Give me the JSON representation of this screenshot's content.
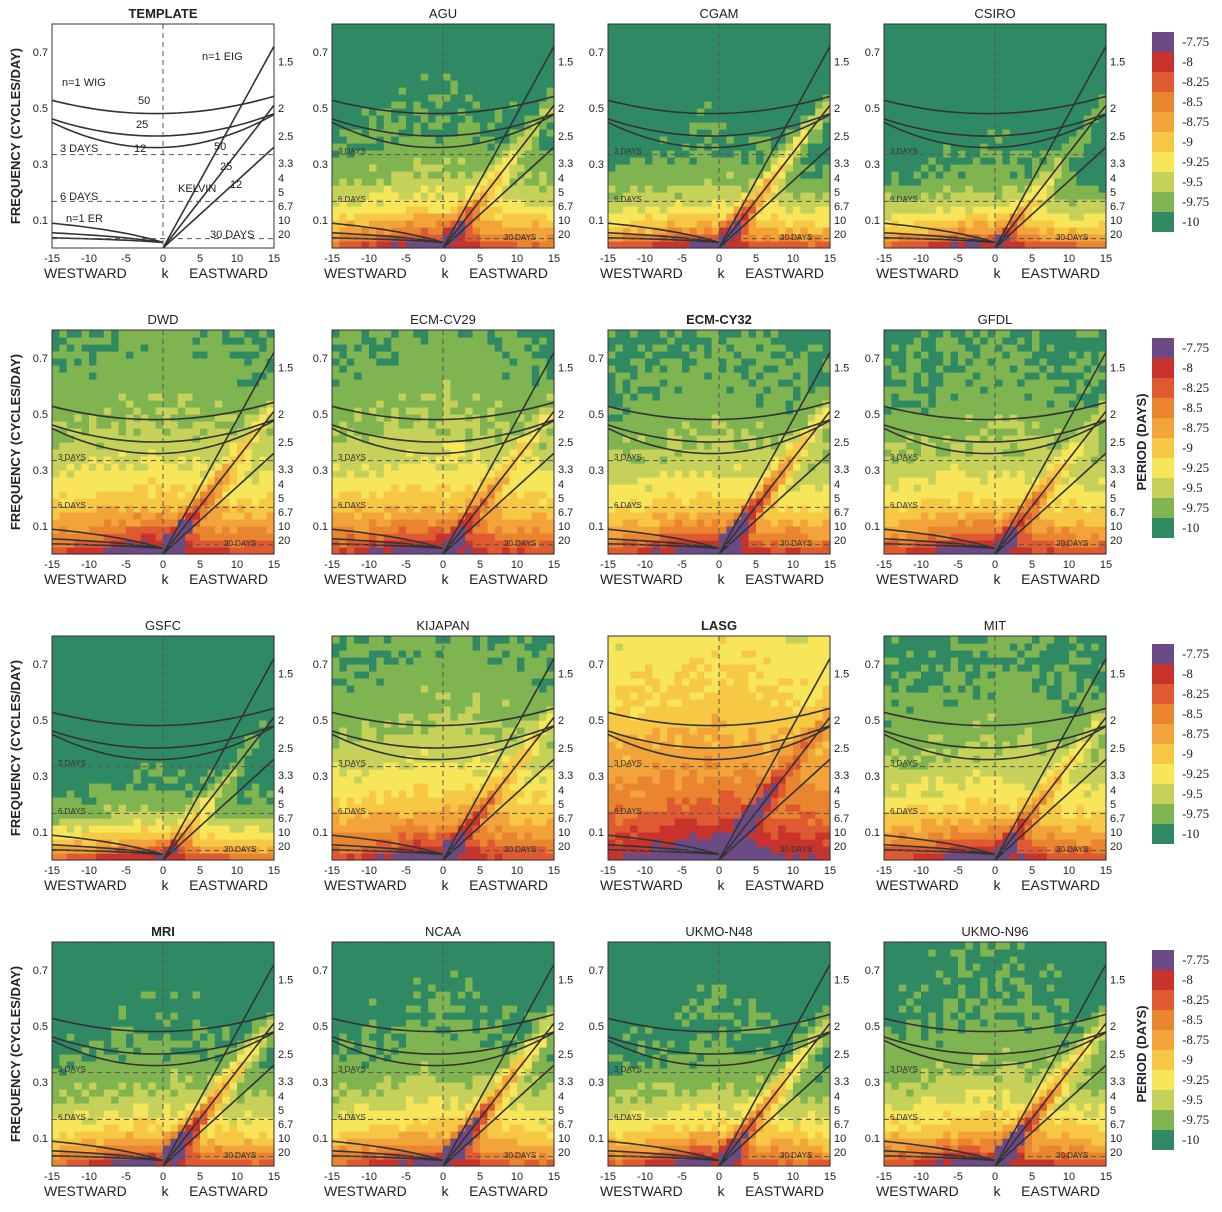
{
  "chart_data": {
    "type": "heatmap",
    "description_units": "log10 spectral power of OLR (wavenumber-frequency), contour bands",
    "colorbar": {
      "levels": [
        "-7.75",
        "-8",
        "-8.25",
        "-8.5",
        "-8.75",
        "-9",
        "-9.25",
        "-9.5",
        "-9.75",
        "-10"
      ],
      "colors": [
        "#6b4a86",
        "#c8332b",
        "#df5a30",
        "#e9852f",
        "#f2a33a",
        "#f6c843",
        "#f8e65a",
        "#c6d15a",
        "#7fb450",
        "#2f8a64"
      ]
    },
    "shared_axes": {
      "ylabel": "FREQUENCY (CYCLES/DAY)",
      "y2label": "PERIOD (DAYS)",
      "xlabel_left": "WESTWARD",
      "xlabel_center": "k",
      "xlabel_right": "EASTWARD",
      "x_ticks": [
        "-15",
        "-10",
        "-5",
        "0",
        "5",
        "10",
        "15"
      ],
      "y_ticks": [
        "0.1",
        "0.3",
        "0.5",
        "0.7"
      ],
      "y2_ticks": [
        "1.5",
        "2",
        "2.5",
        "3.3",
        "4",
        "5",
        "6.7",
        "10",
        "20"
      ],
      "xlim": [
        -15,
        15
      ],
      "ylim": [
        0,
        0.8
      ]
    },
    "panels": [
      {
        "title": "TEMPLATE",
        "kind": "template"
      },
      {
        "title": "AGU",
        "kind": "spectrum"
      },
      {
        "title": "CGAM",
        "kind": "spectrum"
      },
      {
        "title": "CSIRO",
        "kind": "spectrum"
      },
      {
        "title": "DWD",
        "kind": "spectrum"
      },
      {
        "title": "ECM-CV29",
        "kind": "spectrum"
      },
      {
        "title": "ECM-CY32",
        "kind": "spectrum"
      },
      {
        "title": "GFDL",
        "kind": "spectrum"
      },
      {
        "title": "GSFC",
        "kind": "spectrum"
      },
      {
        "title": "KIJAPAN",
        "kind": "spectrum"
      },
      {
        "title": "LASG",
        "kind": "spectrum"
      },
      {
        "title": "MIT",
        "kind": "spectrum"
      },
      {
        "title": "MRI",
        "kind": "spectrum"
      },
      {
        "title": "NCAA",
        "kind": "spectrum"
      },
      {
        "title": "UKMO-N48",
        "kind": "spectrum"
      },
      {
        "title": "UKMO-N96",
        "kind": "spectrum"
      }
    ],
    "template_labels": {
      "wig": "n=1 WIG",
      "eig": "n=1 EIG",
      "er": "n=1 ER",
      "kelvin": "KELVIN",
      "days3": "3 DAYS",
      "days6": "6 DAYS",
      "days30": "30 DAYS",
      "h50": "50",
      "h25": "25",
      "h12": "12"
    }
  }
}
